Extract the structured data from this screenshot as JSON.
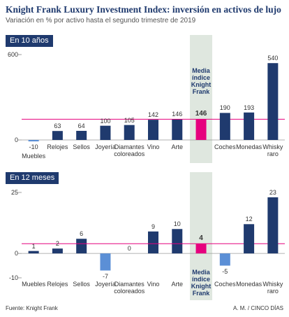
{
  "header": {
    "title": "Knight Frank Luxury Investment Index: inversión en activos de lujo",
    "subtitle": "Variación en % por activo hasta el segundo trimestre de 2019"
  },
  "chart_data": [
    {
      "type": "bar",
      "title": "En 10 años",
      "categories": [
        "Muebles",
        "Relojes",
        "Sellos",
        "Joyería",
        "Diamantes coloreados",
        "Vino",
        "Arte",
        "Media índice Knight Frank",
        "Coches",
        "Monedas",
        "Whisky raro"
      ],
      "values": [
        -10,
        63,
        64,
        100,
        105,
        142,
        146,
        146,
        190,
        193,
        540
      ],
      "colors": [
        "#5b8fd6",
        "#1f3a6e",
        "#1f3a6e",
        "#1f3a6e",
        "#1f3a6e",
        "#1f3a6e",
        "#1f3a6e",
        "#e6007e",
        "#1f3a6e",
        "#1f3a6e",
        "#1f3a6e"
      ],
      "reference_color": "#e6007e",
      "ylim": [
        0,
        600
      ],
      "yticks": [
        0,
        600
      ]
    },
    {
      "type": "bar",
      "title": "En 12 meses",
      "categories": [
        "Muebles",
        "Relojes",
        "Sellos",
        "Joyería",
        "Diamantes coloreados",
        "Vino",
        "Arte",
        "Media índice Knight Frank",
        "Coches",
        "Monedas",
        "Whisky raro"
      ],
      "values": [
        1,
        2,
        6,
        -7,
        0,
        9,
        10,
        4,
        -5,
        12,
        23
      ],
      "colors": [
        "#1f3a6e",
        "#1f3a6e",
        "#1f3a6e",
        "#5b8fd6",
        "#1f3a6e",
        "#1f3a6e",
        "#1f3a6e",
        "#e6007e",
        "#5b8fd6",
        "#1f3a6e",
        "#1f3a6e"
      ],
      "reference_color": "#e6007e",
      "ylim": [
        -10,
        25
      ],
      "yticks": [
        -10,
        0,
        25
      ]
    }
  ],
  "footer": {
    "source": "Fuente: Knight Frank",
    "credit": "A. M. / CINCO DÍAS"
  }
}
